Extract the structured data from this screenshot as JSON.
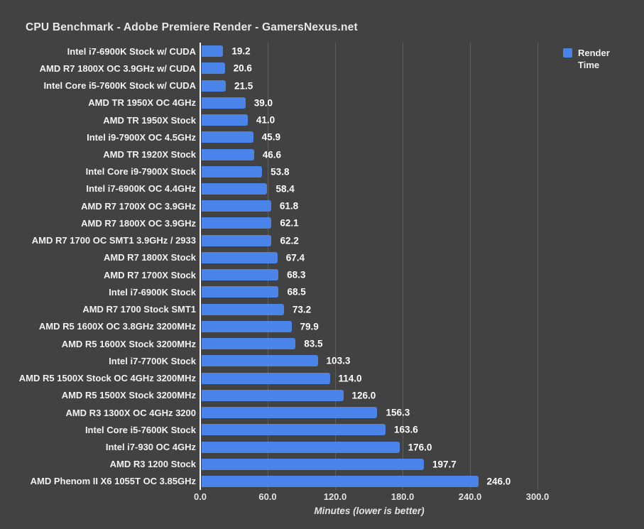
{
  "title": "CPU Benchmark - Adobe Premiere Render - GamersNexus.net",
  "legend": {
    "label": "Render Time",
    "color": "#4A84E8",
    "position": "top-right"
  },
  "colors": {
    "background": "#424242",
    "bar": "#4A84E8",
    "gridline": "#5D5D5D",
    "axis_line": "#FFFFFF",
    "title_text": "#E8E8E8",
    "label_text": "#F2F2F2",
    "value_text": "#FFFFFF",
    "tick_text": "#E3E3E3"
  },
  "chart_data": {
    "type": "bar",
    "orientation": "horizontal",
    "title": "CPU Benchmark - Adobe Premiere Render - GamersNexus.net",
    "series_name": "Render Time",
    "categories": [
      "Intel i7-6900K Stock w/ CUDA",
      "AMD R7 1800X OC 3.9GHz w/ CUDA",
      "Intel Core i5-7600K Stock w/ CUDA",
      "AMD TR 1950X OC 4GHz",
      "AMD TR 1950X Stock",
      "Intel i9-7900X OC 4.5GHz",
      "AMD TR 1920X Stock",
      "Intel Core i9-7900X Stock",
      "Intel i7-6900K OC 4.4GHz",
      "AMD R7 1700X OC 3.9GHz",
      "AMD R7 1800X OC 3.9GHz",
      "AMD R7 1700 OC SMT1 3.9GHz / 2933",
      "AMD R7 1800X Stock",
      "AMD R7 1700X Stock",
      "Intel i7-6900K Stock",
      "AMD R7 1700 Stock SMT1",
      "AMD R5 1600X OC 3.8GHz 3200MHz",
      "AMD R5 1600X Stock 3200MHz",
      "Intel i7-7700K Stock",
      "AMD R5 1500X Stock OC 4GHz 3200MHz",
      "AMD R5 1500X Stock 3200MHz",
      "AMD R3 1300X OC 4GHz 3200",
      "Intel Core i5-7600K Stock",
      "Intel i7-930 OC 4GHz",
      "AMD R3 1200 Stock",
      "AMD Phenom II X6 1055T OC 3.85GHz"
    ],
    "values": [
      19.2,
      20.6,
      21.5,
      39.0,
      41.0,
      45.9,
      46.6,
      53.8,
      58.4,
      61.8,
      62.1,
      62.2,
      67.4,
      68.3,
      68.5,
      73.2,
      79.9,
      83.5,
      103.3,
      114.0,
      126.0,
      156.3,
      163.6,
      176.0,
      197.7,
      246.0
    ],
    "value_labels_shown": true,
    "value_decimals": 1,
    "xlabel": "Minutes (lower is better)",
    "xlim": [
      0,
      300
    ],
    "xticks": [
      0,
      60,
      120,
      180,
      240,
      300
    ],
    "xtick_labels": [
      "0.0",
      "60.0",
      "120.0",
      "180.0",
      "240.0",
      "300.0"
    ],
    "grid": true,
    "legend_position": "top-right"
  }
}
